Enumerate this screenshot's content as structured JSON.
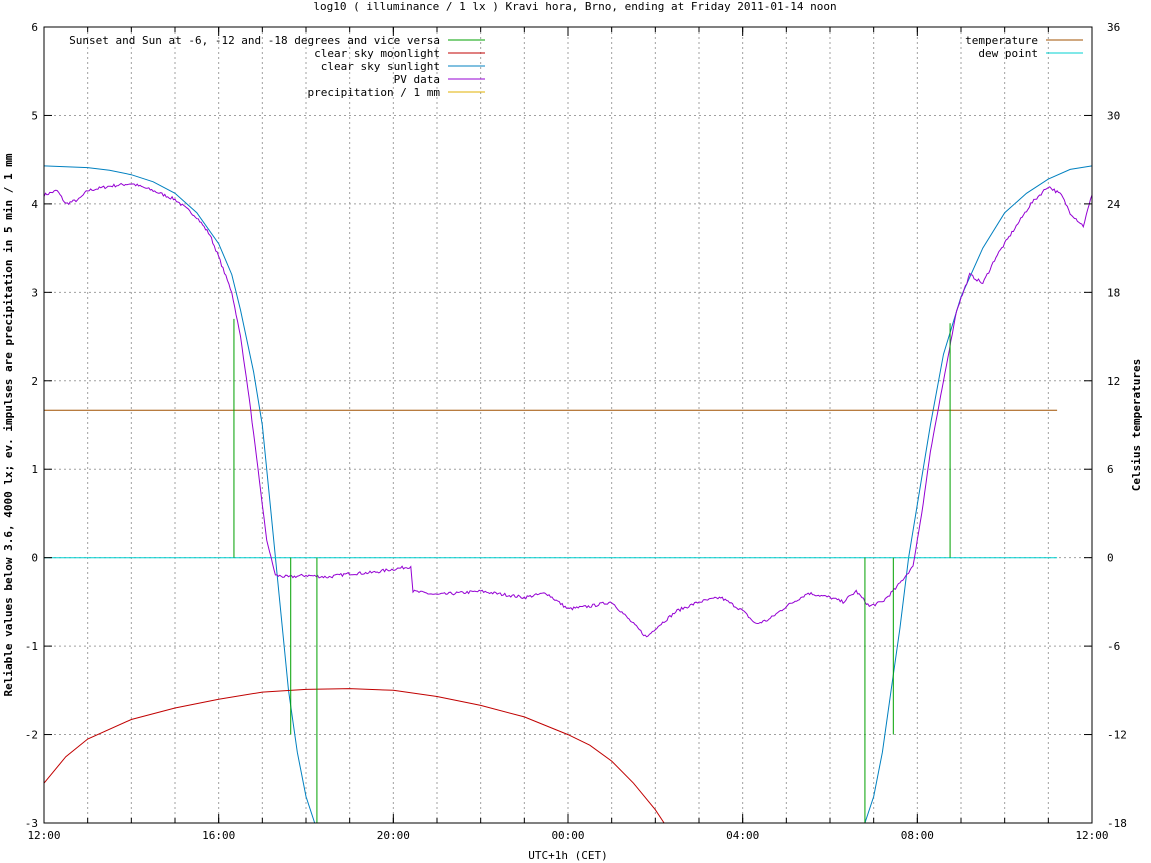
{
  "chart_data": {
    "type": "line",
    "title": "log10 ( illuminance / 1 lx ) Kravi hora, Brno, ending at Friday 2011-01-14 noon",
    "xlabel": "UTC+1h (CET)",
    "ylabel": "Reliable values below 3.6, 4000 lx; ev. impulses are precipitation in 5 min / 1 mm",
    "y2label": "Celsius temperatures",
    "xlim": [
      12,
      36
    ],
    "ylim": [
      -3,
      6
    ],
    "y2lim": [
      -18,
      36
    ],
    "x_ticks": [
      {
        "x": 12,
        "label": "12:00"
      },
      {
        "x": 16,
        "label": "16:00"
      },
      {
        "x": 20,
        "label": "20:00"
      },
      {
        "x": 24,
        "label": "00:00"
      },
      {
        "x": 28,
        "label": "04:00"
      },
      {
        "x": 32,
        "label": "08:00"
      },
      {
        "x": 36,
        "label": "12:00"
      }
    ],
    "y_ticks": [
      {
        "v": -3,
        "label": "-3"
      },
      {
        "v": -2,
        "label": "-2"
      },
      {
        "v": -1,
        "label": "-1"
      },
      {
        "v": 0,
        "label": "0"
      },
      {
        "v": 1,
        "label": "1"
      },
      {
        "v": 2,
        "label": "2"
      },
      {
        "v": 3,
        "label": "3"
      },
      {
        "v": 4,
        "label": "4"
      },
      {
        "v": 5,
        "label": "5"
      },
      {
        "v": 6,
        "label": "6"
      }
    ],
    "y2_ticks": [
      {
        "v": -18,
        "label": "-18"
      },
      {
        "v": -12,
        "label": "-12"
      },
      {
        "v": -6,
        "label": "-6"
      },
      {
        "v": 0,
        "label": "0"
      },
      {
        "v": 6,
        "label": "6"
      },
      {
        "v": 12,
        "label": "12"
      },
      {
        "v": 18,
        "label": "18"
      },
      {
        "v": 24,
        "label": "24"
      },
      {
        "v": 30,
        "label": "30"
      },
      {
        "v": 36,
        "label": "36"
      }
    ],
    "grid": true,
    "legend_left": [
      {
        "name": "Sunset and Sun at -6, -12 and -18 degrees and vice versa",
        "color": "#00a000"
      },
      {
        "name": "clear sky moonlight",
        "color": "#c00000"
      },
      {
        "name": "clear sky sunlight",
        "color": "#0080c0"
      },
      {
        "name": "PV data",
        "color": "#9400d3"
      },
      {
        "name": "precipitation / 1 mm",
        "color": "#e0b000"
      }
    ],
    "legend_right": [
      {
        "name": "temperature",
        "color": "#a05000"
      },
      {
        "name": "dew point",
        "color": "#00d0d0"
      }
    ],
    "impulses": [
      {
        "x": 16.35,
        "y": 2.7
      },
      {
        "x": 17.65,
        "y": -2.0
      },
      {
        "x": 18.25,
        "y": -3.0
      },
      {
        "x": 30.8,
        "y": -3.0
      },
      {
        "x": 31.45,
        "y": -2.0
      },
      {
        "x": 32.75,
        "y": 2.65
      }
    ],
    "series": [
      {
        "name": "clear sky sunlight",
        "color": "#0080c0",
        "points": [
          [
            12,
            4.43
          ],
          [
            13,
            4.41
          ],
          [
            13.5,
            4.38
          ],
          [
            14,
            4.33
          ],
          [
            14.5,
            4.25
          ],
          [
            15,
            4.12
          ],
          [
            15.5,
            3.9
          ],
          [
            16,
            3.55
          ],
          [
            16.3,
            3.2
          ],
          [
            16.5,
            2.8
          ],
          [
            16.8,
            2.1
          ],
          [
            17,
            1.5
          ],
          [
            17.2,
            0.5
          ],
          [
            17.4,
            -0.5
          ],
          [
            17.6,
            -1.5
          ],
          [
            17.8,
            -2.2
          ],
          [
            18,
            -2.7
          ],
          [
            18.2,
            -3.0
          ],
          [
            30.8,
            -3.0
          ],
          [
            31,
            -2.7
          ],
          [
            31.2,
            -2.2
          ],
          [
            31.4,
            -1.5
          ],
          [
            31.6,
            -0.8
          ],
          [
            31.8,
            0.0
          ],
          [
            32,
            0.6
          ],
          [
            32.3,
            1.5
          ],
          [
            32.6,
            2.3
          ],
          [
            33,
            2.95
          ],
          [
            33.5,
            3.5
          ],
          [
            34,
            3.9
          ],
          [
            34.5,
            4.12
          ],
          [
            35,
            4.28
          ],
          [
            35.5,
            4.39
          ],
          [
            36,
            4.43
          ]
        ]
      },
      {
        "name": "clear sky moonlight",
        "color": "#c00000",
        "points": [
          [
            12,
            -2.55
          ],
          [
            12.5,
            -2.25
          ],
          [
            13,
            -2.05
          ],
          [
            14,
            -1.83
          ],
          [
            15,
            -1.7
          ],
          [
            16,
            -1.6
          ],
          [
            17,
            -1.52
          ],
          [
            18,
            -1.49
          ],
          [
            19,
            -1.48
          ],
          [
            20,
            -1.5
          ],
          [
            21,
            -1.57
          ],
          [
            22,
            -1.67
          ],
          [
            23,
            -1.8
          ],
          [
            24,
            -2.0
          ],
          [
            24.5,
            -2.12
          ],
          [
            25,
            -2.3
          ],
          [
            25.5,
            -2.55
          ],
          [
            26,
            -2.85
          ],
          [
            26.2,
            -3.0
          ]
        ]
      },
      {
        "name": "temperature",
        "color": "#a05000",
        "axis": "y2",
        "points": [
          [
            12,
            10
          ],
          [
            35.2,
            10
          ]
        ]
      },
      {
        "name": "dew point",
        "color": "#00d0d0",
        "axis": "y2",
        "points": [
          [
            12,
            0
          ],
          [
            35.2,
            0
          ]
        ]
      },
      {
        "name": "PV data",
        "color": "#9400d3",
        "noisy": true,
        "points": [
          [
            12,
            4.1
          ],
          [
            12.3,
            4.15
          ],
          [
            12.5,
            4.0
          ],
          [
            12.8,
            4.05
          ],
          [
            13,
            4.15
          ],
          [
            13.5,
            4.2
          ],
          [
            14,
            4.23
          ],
          [
            14.5,
            4.15
          ],
          [
            15,
            4.05
          ],
          [
            15.5,
            3.85
          ],
          [
            15.8,
            3.65
          ],
          [
            16,
            3.4
          ],
          [
            16.3,
            3.0
          ],
          [
            16.5,
            2.5
          ],
          [
            16.7,
            1.8
          ],
          [
            16.9,
            1.0
          ],
          [
            17.1,
            0.2
          ],
          [
            17.3,
            -0.2
          ],
          [
            17.6,
            -0.22
          ],
          [
            18,
            -0.2
          ],
          [
            18.5,
            -0.22
          ],
          [
            19,
            -0.18
          ],
          [
            19.5,
            -0.17
          ],
          [
            20,
            -0.13
          ],
          [
            20.4,
            -0.1
          ],
          [
            20.45,
            -0.38
          ],
          [
            21,
            -0.42
          ],
          [
            22,
            -0.38
          ],
          [
            23,
            -0.45
          ],
          [
            23.5,
            -0.4
          ],
          [
            24,
            -0.58
          ],
          [
            24.5,
            -0.55
          ],
          [
            25,
            -0.5
          ],
          [
            25.5,
            -0.75
          ],
          [
            25.8,
            -0.9
          ],
          [
            26,
            -0.8
          ],
          [
            26.5,
            -0.6
          ],
          [
            27,
            -0.5
          ],
          [
            27.5,
            -0.45
          ],
          [
            28,
            -0.6
          ],
          [
            28.3,
            -0.75
          ],
          [
            28.6,
            -0.7
          ],
          [
            29,
            -0.55
          ],
          [
            29.5,
            -0.4
          ],
          [
            30,
            -0.45
          ],
          [
            30.3,
            -0.5
          ],
          [
            30.6,
            -0.38
          ],
          [
            30.9,
            -0.55
          ],
          [
            31.2,
            -0.5
          ],
          [
            31.5,
            -0.35
          ],
          [
            31.9,
            -0.1
          ],
          [
            32.1,
            0.5
          ],
          [
            32.3,
            1.2
          ],
          [
            32.6,
            2.0
          ],
          [
            32.9,
            2.8
          ],
          [
            33.2,
            3.2
          ],
          [
            33.5,
            3.1
          ],
          [
            33.8,
            3.4
          ],
          [
            34.2,
            3.7
          ],
          [
            34.6,
            4.0
          ],
          [
            35,
            4.2
          ],
          [
            35.3,
            4.1
          ],
          [
            35.5,
            3.9
          ],
          [
            35.8,
            3.75
          ],
          [
            36,
            4.1
          ]
        ]
      }
    ]
  }
}
